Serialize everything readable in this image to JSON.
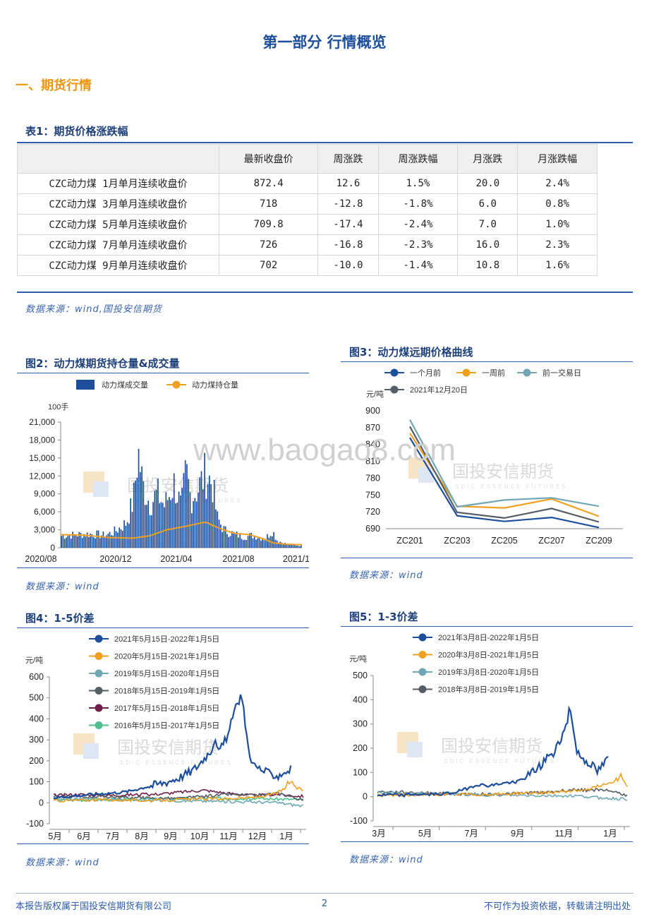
{
  "page_title": "第一部分 行情概览",
  "section_title": "一、期货行情",
  "table": {
    "title": "表1：期货价格涨跌幅",
    "headers": [
      "",
      "最新收盘价",
      "周涨跌",
      "周涨跌幅",
      "月涨跌",
      "月涨跌幅"
    ],
    "rows": [
      [
        "CZC动力煤 1月单月连续收盘价",
        "872.4",
        "12.6",
        "1.5%",
        "20.0",
        "2.4%"
      ],
      [
        "CZC动力煤 3月单月连续收盘价",
        "718",
        "-12.8",
        "-1.8%",
        "6.0",
        "0.8%"
      ],
      [
        "CZC动力煤 5月单月连续收盘价",
        "709.8",
        "-17.4",
        "-2.4%",
        "7.0",
        "1.0%"
      ],
      [
        "CZC动力煤 7月单月连续收盘价",
        "726",
        "-16.8",
        "-2.3%",
        "16.0",
        "2.3%"
      ],
      [
        "CZC动力煤 9月单月连续收盘价",
        "702",
        "-10.0",
        "-1.4%",
        "10.8",
        "1.6%"
      ]
    ],
    "source": "数据来源：wind,国投安信期货"
  },
  "watermark": {
    "url": "www.baogao8.com",
    "company": "国投安信期货",
    "company_en": "SDIC ESSENCE FUTURES"
  },
  "colors": {
    "blue": "#1d4e9c",
    "orange": "#f0a020",
    "teal": "#6fa8b4",
    "gray": "#555e66",
    "maroon": "#6e1f4a",
    "green": "#4cbf8c"
  },
  "footer": {
    "left": "本报告版权属于国投安信期货有限公司",
    "page": "2",
    "right": "不可作为投资依据，转载请注明出处"
  },
  "chart_data": [
    {
      "id": "fig2",
      "title": "图2：动力煤期货持仓量&成交量",
      "type": "bar",
      "unit": "100手",
      "legend": [
        "动力煤成交量",
        "动力煤持仓量"
      ],
      "ylim": [
        0,
        21000
      ],
      "yticks": [
        "21,000",
        "18,000",
        "15,000",
        "12,000",
        "9,000",
        "6,000",
        "3,000",
        "0"
      ],
      "xticks": [
        "2020/08",
        "2020/12",
        "2021/04",
        "2021/08",
        "2021/1"
      ],
      "volume_points": [
        [
          0,
          2400
        ],
        [
          0.05,
          2600
        ],
        [
          0.1,
          2800
        ],
        [
          0.15,
          2700
        ],
        [
          0.18,
          2500
        ],
        [
          0.22,
          3200
        ],
        [
          0.27,
          5000
        ],
        [
          0.3,
          9500
        ],
        [
          0.32,
          19500
        ],
        [
          0.34,
          12500
        ],
        [
          0.37,
          9000
        ],
        [
          0.4,
          11000
        ],
        [
          0.43,
          8500
        ],
        [
          0.47,
          13000
        ],
        [
          0.5,
          8000
        ],
        [
          0.52,
          15500
        ],
        [
          0.54,
          10000
        ],
        [
          0.57,
          12000
        ],
        [
          0.6,
          15000
        ],
        [
          0.63,
          13000
        ],
        [
          0.65,
          6000
        ],
        [
          0.68,
          3500
        ],
        [
          0.72,
          2800
        ],
        [
          0.76,
          2200
        ],
        [
          0.8,
          2500
        ],
        [
          0.85,
          1800
        ],
        [
          0.88,
          3500
        ],
        [
          0.9,
          1500
        ],
        [
          0.94,
          700
        ],
        [
          1,
          400
        ]
      ],
      "open_interest_points": [
        [
          0,
          2200
        ],
        [
          0.1,
          2100
        ],
        [
          0.2,
          1700
        ],
        [
          0.3,
          1600
        ],
        [
          0.37,
          2000
        ],
        [
          0.44,
          3000
        ],
        [
          0.52,
          3600
        ],
        [
          0.6,
          4300
        ],
        [
          0.66,
          3200
        ],
        [
          0.72,
          2400
        ],
        [
          0.78,
          2200
        ],
        [
          0.84,
          1500
        ],
        [
          0.88,
          800
        ],
        [
          0.93,
          600
        ],
        [
          1,
          500
        ]
      ]
    },
    {
      "id": "fig3",
      "title": "图3：动力煤远期价格曲线",
      "type": "line",
      "unit": "元/吨",
      "categories": [
        "ZC201",
        "ZC203",
        "ZC205",
        "ZC207",
        "ZC209"
      ],
      "ylim": [
        690,
        900
      ],
      "yticks": [
        "900",
        "870",
        "840",
        "810",
        "780",
        "750",
        "720",
        "690"
      ],
      "series": [
        {
          "name": "一个月前",
          "color": "#1d4e9c",
          "values": [
            852,
            713,
            703,
            710,
            692
          ]
        },
        {
          "name": "一周前",
          "color": "#f0a020",
          "values": [
            860,
            730,
            727,
            743,
            712
          ]
        },
        {
          "name": "前一交易日",
          "color": "#6fa8b4",
          "values": [
            884,
            729,
            741,
            745,
            730
          ]
        },
        {
          "name": "2021年12月20日",
          "color": "#555e66",
          "values": [
            872,
            719,
            709,
            726,
            702
          ]
        }
      ]
    },
    {
      "id": "fig4",
      "title": "图4：1-5价差",
      "type": "line",
      "unit": "元/吨",
      "ylim": [
        -100,
        600
      ],
      "yticks": [
        "600",
        "500",
        "400",
        "300",
        "200",
        "100",
        "0",
        "-100"
      ],
      "xticks": [
        "5月",
        "6月",
        "7月",
        "8月",
        "9月",
        "10月",
        "11月",
        "12月",
        "1月"
      ],
      "series": [
        {
          "name": "2021年5月15日-2022年1月5日",
          "color": "#1d4e9c",
          "points": [
            [
              0,
              25
            ],
            [
              0.05,
              30
            ],
            [
              0.1,
              35
            ],
            [
              0.15,
              40
            ],
            [
              0.2,
              45
            ],
            [
              0.25,
              48
            ],
            [
              0.3,
              55
            ],
            [
              0.35,
              70
            ],
            [
              0.4,
              85
            ],
            [
              0.45,
              100
            ],
            [
              0.5,
              120
            ],
            [
              0.55,
              150
            ],
            [
              0.58,
              180
            ],
            [
              0.6,
              210
            ],
            [
              0.63,
              250
            ],
            [
              0.65,
              320
            ],
            [
              0.66,
              240
            ],
            [
              0.68,
              280
            ],
            [
              0.7,
              330
            ],
            [
              0.72,
              420
            ],
            [
              0.74,
              480
            ],
            [
              0.75,
              520
            ],
            [
              0.76,
              450
            ],
            [
              0.78,
              260
            ],
            [
              0.8,
              180
            ],
            [
              0.83,
              160
            ],
            [
              0.86,
              140
            ],
            [
              0.9,
              130
            ],
            [
              0.93,
              150
            ],
            [
              0.95,
              160
            ]
          ]
        },
        {
          "name": "2020年5月15日-2021年1月5日",
          "color": "#f0a020",
          "points": [
            [
              0,
              10
            ],
            [
              0.1,
              12
            ],
            [
              0.2,
              15
            ],
            [
              0.3,
              12
            ],
            [
              0.4,
              10
            ],
            [
              0.5,
              15
            ],
            [
              0.6,
              18
            ],
            [
              0.7,
              20
            ],
            [
              0.8,
              25
            ],
            [
              0.86,
              35
            ],
            [
              0.9,
              50
            ],
            [
              0.93,
              70
            ],
            [
              0.95,
              110
            ],
            [
              0.97,
              70
            ],
            [
              1,
              60
            ]
          ]
        },
        {
          "name": "2019年5月15日-2020年1月5日",
          "color": "#6fa8b4",
          "points": [
            [
              0,
              20
            ],
            [
              0.1,
              18
            ],
            [
              0.2,
              16
            ],
            [
              0.3,
              14
            ],
            [
              0.4,
              12
            ],
            [
              0.5,
              10
            ],
            [
              0.6,
              8
            ],
            [
              0.7,
              6
            ],
            [
              0.8,
              4
            ],
            [
              0.9,
              0
            ],
            [
              0.96,
              -10
            ],
            [
              1,
              -15
            ]
          ]
        },
        {
          "name": "2018年5月15日-2019年1月5日",
          "color": "#555e66",
          "points": [
            [
              0,
              30
            ],
            [
              0.1,
              28
            ],
            [
              0.2,
              30
            ],
            [
              0.3,
              25
            ],
            [
              0.4,
              22
            ],
            [
              0.5,
              20
            ],
            [
              0.6,
              30
            ],
            [
              0.7,
              40
            ],
            [
              0.8,
              35
            ],
            [
              0.9,
              45
            ],
            [
              0.95,
              30
            ],
            [
              1,
              10
            ]
          ]
        },
        {
          "name": "2017年5月15日-2018年1月5日",
          "color": "#6e1f4a",
          "points": [
            [
              0,
              35
            ],
            [
              0.1,
              40
            ],
            [
              0.2,
              35
            ],
            [
              0.3,
              38
            ],
            [
              0.4,
              40
            ],
            [
              0.5,
              50
            ],
            [
              0.6,
              60
            ],
            [
              0.7,
              45
            ],
            [
              0.8,
              35
            ],
            [
              0.9,
              40
            ],
            [
              1,
              30
            ]
          ]
        },
        {
          "name": "2016年5月15日-2017年1月5日",
          "color": "#4cbf8c",
          "points": [
            [
              0,
              12
            ],
            [
              0.2,
              15
            ],
            [
              0.4,
              18
            ],
            [
              0.6,
              22
            ],
            [
              0.8,
              20
            ],
            [
              1,
              15
            ]
          ]
        }
      ]
    },
    {
      "id": "fig5",
      "title": "图5：1-3价差",
      "type": "line",
      "unit": "元/吨",
      "ylim": [
        -100,
        500
      ],
      "yticks": [
        "500",
        "400",
        "300",
        "200",
        "100",
        "0",
        "-100"
      ],
      "xticks": [
        "3月",
        "5月",
        "7月",
        "9月",
        "11月",
        "1月"
      ],
      "series": [
        {
          "name": "2021年3月8日-2022年1月5日",
          "color": "#1d4e9c",
          "points": [
            [
              0,
              5
            ],
            [
              0.05,
              8
            ],
            [
              0.1,
              5
            ],
            [
              0.15,
              10
            ],
            [
              0.2,
              8
            ],
            [
              0.25,
              12
            ],
            [
              0.3,
              15
            ],
            [
              0.35,
              30
            ],
            [
              0.4,
              50
            ],
            [
              0.45,
              45
            ],
            [
              0.5,
              55
            ],
            [
              0.55,
              60
            ],
            [
              0.6,
              80
            ],
            [
              0.63,
              110
            ],
            [
              0.66,
              130
            ],
            [
              0.68,
              170
            ],
            [
              0.7,
              160
            ],
            [
              0.72,
              220
            ],
            [
              0.74,
              250
            ],
            [
              0.76,
              300
            ],
            [
              0.77,
              400
            ],
            [
              0.78,
              300
            ],
            [
              0.8,
              180
            ],
            [
              0.83,
              150
            ],
            [
              0.86,
              130
            ],
            [
              0.88,
              100
            ],
            [
              0.91,
              140
            ],
            [
              0.93,
              160
            ]
          ]
        },
        {
          "name": "2020年3月8日-2021年1月5日",
          "color": "#f0a020",
          "points": [
            [
              0,
              5
            ],
            [
              0.1,
              6
            ],
            [
              0.2,
              8
            ],
            [
              0.3,
              10
            ],
            [
              0.4,
              8
            ],
            [
              0.5,
              10
            ],
            [
              0.6,
              15
            ],
            [
              0.7,
              18
            ],
            [
              0.8,
              25
            ],
            [
              0.86,
              35
            ],
            [
              0.9,
              50
            ],
            [
              0.94,
              60
            ],
            [
              0.97,
              90
            ],
            [
              1,
              45
            ]
          ]
        },
        {
          "name": "2019年3月8日-2020年1月5日",
          "color": "#6fa8b4",
          "points": [
            [
              0,
              15
            ],
            [
              0.1,
              14
            ],
            [
              0.2,
              12
            ],
            [
              0.3,
              10
            ],
            [
              0.4,
              8
            ],
            [
              0.5,
              6
            ],
            [
              0.6,
              5
            ],
            [
              0.7,
              4
            ],
            [
              0.8,
              3
            ],
            [
              0.9,
              -5
            ],
            [
              1,
              -10
            ]
          ]
        },
        {
          "name": "2018年3月8日-2019年1月5日",
          "color": "#555e66",
          "points": [
            [
              0,
              20
            ],
            [
              0.1,
              18
            ],
            [
              0.2,
              15
            ],
            [
              0.3,
              12
            ],
            [
              0.4,
              10
            ],
            [
              0.5,
              10
            ],
            [
              0.6,
              15
            ],
            [
              0.7,
              20
            ],
            [
              0.8,
              30
            ],
            [
              0.85,
              25
            ],
            [
              0.9,
              30
            ],
            [
              0.95,
              20
            ],
            [
              1,
              5
            ]
          ]
        }
      ]
    }
  ]
}
